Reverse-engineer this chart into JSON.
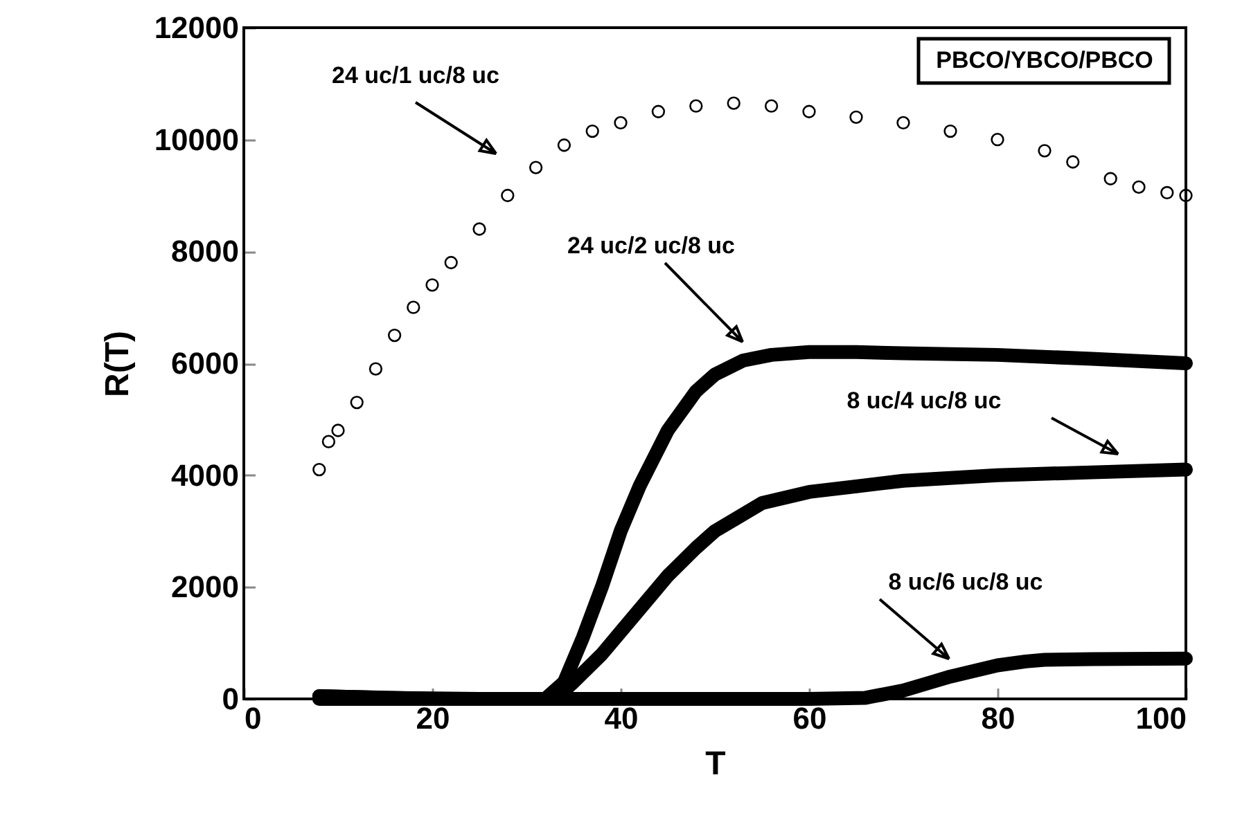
{
  "chart_data": {
    "type": "line",
    "xlabel": "T",
    "ylabel": "R(T)",
    "xlim": [
      0,
      100
    ],
    "xticks": [
      0,
      20,
      40,
      60,
      80,
      100
    ],
    "ylim": [
      0,
      12000
    ],
    "yticks": [
      0,
      2000,
      4000,
      6000,
      8000,
      10000,
      12000
    ],
    "grid": false,
    "x": [
      8,
      9,
      10,
      12,
      14,
      16,
      18,
      20,
      22,
      25,
      28,
      31,
      34,
      37,
      40,
      44,
      48,
      52,
      56,
      60,
      65,
      70,
      75,
      80,
      85,
      88,
      92,
      95,
      98,
      100
    ],
    "series": [
      {
        "type": "scatter",
        "color": "#000000",
        "values": [
          4100,
          4600,
          4800,
          5300,
          5900,
          6500,
          7000,
          7400,
          7800,
          8400,
          9000,
          9500,
          9900,
          10150,
          10300,
          10500,
          10600,
          10650,
          10600,
          10500,
          10400,
          10300,
          10150,
          10000,
          9800,
          9600,
          9300,
          9150,
          9050,
          9000
        ]
      },
      {
        "color": "#000000",
        "x": [
          8,
          15,
          25,
          32,
          34,
          36,
          38,
          40,
          42,
          45,
          48,
          50,
          53,
          56,
          60,
          65,
          70,
          80,
          90,
          100
        ],
        "values": [
          50,
          20,
          0,
          0,
          300,
          1100,
          2000,
          3000,
          3800,
          4800,
          5500,
          5800,
          6050,
          6150,
          6200,
          6200,
          6180,
          6150,
          6080,
          6000
        ]
      },
      {
        "color": "#000000",
        "x": [
          8,
          20,
          32,
          33,
          35,
          38,
          40,
          43,
          45,
          48,
          50,
          55,
          60,
          65,
          70,
          80,
          90,
          100
        ],
        "values": [
          50,
          0,
          0,
          0,
          300,
          800,
          1200,
          1800,
          2200,
          2700,
          3000,
          3500,
          3700,
          3800,
          3900,
          4000,
          4050,
          4100
        ]
      },
      {
        "color": "#000000",
        "x": [
          8,
          20,
          40,
          60,
          66,
          70,
          73,
          75,
          78,
          80,
          83,
          85,
          90,
          100
        ],
        "values": [
          0,
          0,
          0,
          0,
          20,
          150,
          300,
          400,
          520,
          600,
          670,
          700,
          710,
          720
        ]
      }
    ],
    "annotations": [
      "24  uc/1  uc/8  uc",
      "24  uc/2  uc/8  uc",
      "8  uc/4  uc/8  uc",
      "8  uc/6  uc/8  uc",
      "PBCO/YBCO/PBCO"
    ]
  }
}
